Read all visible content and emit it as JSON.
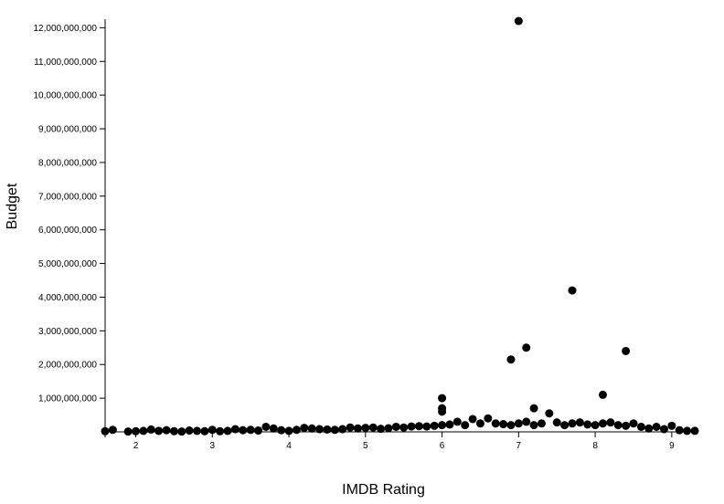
{
  "chart_data": {
    "type": "scatter",
    "title": "",
    "xlabel": "IMDB Rating",
    "ylabel": "Budget",
    "xlim": [
      1.6,
      9.3
    ],
    "ylim": [
      0,
      12200000000
    ],
    "x_ticks": [
      2,
      3,
      4,
      5,
      6,
      7,
      8,
      9
    ],
    "x_tick_labels": [
      "2",
      "3",
      "4",
      "5",
      "6",
      "7",
      "8",
      "9"
    ],
    "y_ticks": [
      1000000000,
      2000000000,
      3000000000,
      4000000000,
      5000000000,
      6000000000,
      7000000000,
      8000000000,
      9000000000,
      10000000000,
      11000000000,
      12000000000
    ],
    "y_tick_labels": [
      "1,000,000,000",
      "2,000,000,000",
      "3,000,000,000",
      "4,000,000,000",
      "5,000,000,000",
      "6,000,000,000",
      "7,000,000,000",
      "8,000,000,000",
      "9,000,000,000",
      "10,000,000,000",
      "11,000,000,000",
      "12,000,000,000"
    ],
    "grid": false,
    "point_color": "#000000",
    "points": [
      {
        "x": 1.6,
        "y": 20000000
      },
      {
        "x": 1.7,
        "y": 60000000
      },
      {
        "x": 1.9,
        "y": 10000000
      },
      {
        "x": 2.0,
        "y": 20000000
      },
      {
        "x": 2.1,
        "y": 30000000
      },
      {
        "x": 2.2,
        "y": 70000000
      },
      {
        "x": 2.3,
        "y": 30000000
      },
      {
        "x": 2.4,
        "y": 50000000
      },
      {
        "x": 2.5,
        "y": 20000000
      },
      {
        "x": 2.6,
        "y": 10000000
      },
      {
        "x": 2.7,
        "y": 40000000
      },
      {
        "x": 2.8,
        "y": 30000000
      },
      {
        "x": 2.9,
        "y": 20000000
      },
      {
        "x": 3.0,
        "y": 60000000
      },
      {
        "x": 3.1,
        "y": 20000000
      },
      {
        "x": 3.2,
        "y": 30000000
      },
      {
        "x": 3.3,
        "y": 80000000
      },
      {
        "x": 3.4,
        "y": 50000000
      },
      {
        "x": 3.5,
        "y": 60000000
      },
      {
        "x": 3.6,
        "y": 40000000
      },
      {
        "x": 3.7,
        "y": 150000000
      },
      {
        "x": 3.8,
        "y": 100000000
      },
      {
        "x": 3.9,
        "y": 50000000
      },
      {
        "x": 4.0,
        "y": 30000000
      },
      {
        "x": 4.1,
        "y": 60000000
      },
      {
        "x": 4.2,
        "y": 120000000
      },
      {
        "x": 4.3,
        "y": 100000000
      },
      {
        "x": 4.4,
        "y": 80000000
      },
      {
        "x": 4.5,
        "y": 70000000
      },
      {
        "x": 4.6,
        "y": 60000000
      },
      {
        "x": 4.7,
        "y": 80000000
      },
      {
        "x": 4.8,
        "y": 130000000
      },
      {
        "x": 4.9,
        "y": 100000000
      },
      {
        "x": 5.0,
        "y": 120000000
      },
      {
        "x": 5.1,
        "y": 130000000
      },
      {
        "x": 5.2,
        "y": 90000000
      },
      {
        "x": 5.3,
        "y": 110000000
      },
      {
        "x": 5.4,
        "y": 150000000
      },
      {
        "x": 5.5,
        "y": 130000000
      },
      {
        "x": 5.6,
        "y": 160000000
      },
      {
        "x": 5.7,
        "y": 170000000
      },
      {
        "x": 5.8,
        "y": 160000000
      },
      {
        "x": 5.9,
        "y": 180000000
      },
      {
        "x": 6.0,
        "y": 200000000
      },
      {
        "x": 6.0,
        "y": 600000000
      },
      {
        "x": 6.0,
        "y": 700000000
      },
      {
        "x": 6.0,
        "y": 1000000000
      },
      {
        "x": 6.1,
        "y": 220000000
      },
      {
        "x": 6.2,
        "y": 300000000
      },
      {
        "x": 6.3,
        "y": 200000000
      },
      {
        "x": 6.4,
        "y": 380000000
      },
      {
        "x": 6.5,
        "y": 250000000
      },
      {
        "x": 6.6,
        "y": 400000000
      },
      {
        "x": 6.7,
        "y": 250000000
      },
      {
        "x": 6.8,
        "y": 230000000
      },
      {
        "x": 6.9,
        "y": 200000000
      },
      {
        "x": 6.9,
        "y": 2150000000
      },
      {
        "x": 7.0,
        "y": 250000000
      },
      {
        "x": 7.0,
        "y": 12200000000
      },
      {
        "x": 7.1,
        "y": 300000000
      },
      {
        "x": 7.1,
        "y": 2500000000
      },
      {
        "x": 7.2,
        "y": 700000000
      },
      {
        "x": 7.2,
        "y": 200000000
      },
      {
        "x": 7.3,
        "y": 250000000
      },
      {
        "x": 7.4,
        "y": 550000000
      },
      {
        "x": 7.5,
        "y": 280000000
      },
      {
        "x": 7.6,
        "y": 200000000
      },
      {
        "x": 7.7,
        "y": 250000000
      },
      {
        "x": 7.7,
        "y": 4200000000
      },
      {
        "x": 7.8,
        "y": 280000000
      },
      {
        "x": 7.9,
        "y": 220000000
      },
      {
        "x": 8.0,
        "y": 200000000
      },
      {
        "x": 8.1,
        "y": 250000000
      },
      {
        "x": 8.1,
        "y": 1100000000
      },
      {
        "x": 8.2,
        "y": 280000000
      },
      {
        "x": 8.3,
        "y": 200000000
      },
      {
        "x": 8.4,
        "y": 180000000
      },
      {
        "x": 8.4,
        "y": 2400000000
      },
      {
        "x": 8.5,
        "y": 250000000
      },
      {
        "x": 8.6,
        "y": 150000000
      },
      {
        "x": 8.7,
        "y": 100000000
      },
      {
        "x": 8.8,
        "y": 150000000
      },
      {
        "x": 8.9,
        "y": 80000000
      },
      {
        "x": 9.0,
        "y": 180000000
      },
      {
        "x": 9.1,
        "y": 50000000
      },
      {
        "x": 9.2,
        "y": 30000000
      },
      {
        "x": 9.3,
        "y": 30000000
      }
    ]
  }
}
